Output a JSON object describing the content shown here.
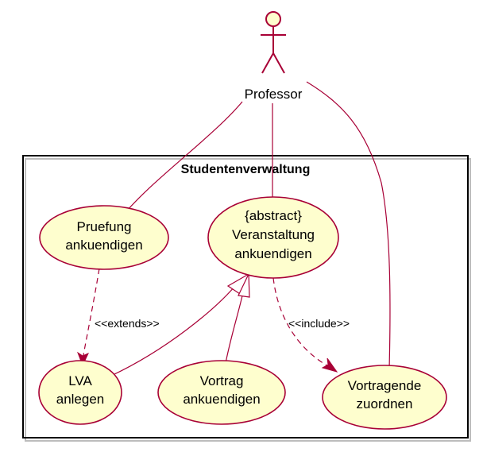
{
  "actor": {
    "name": "Professor"
  },
  "package": {
    "title": "Studentenverwaltung"
  },
  "use_cases": {
    "pruefung": {
      "line1": "Pruefung",
      "line2": "ankuendigen"
    },
    "veranstaltung": {
      "line1": "{abstract}",
      "line2": "Veranstaltung",
      "line3": "ankuendigen"
    },
    "lva": {
      "line1": "LVA",
      "line2": "anlegen"
    },
    "vortrag": {
      "line1": "Vortrag",
      "line2": "ankuendigen"
    },
    "vortragende": {
      "line1": "Vortragende",
      "line2": "zuordnen"
    }
  },
  "relations": {
    "extends_label": "<<extends>>",
    "include_label": "<<include>>"
  },
  "colors": {
    "usecase_fill": "#FEFECE",
    "border": "#A80036"
  }
}
